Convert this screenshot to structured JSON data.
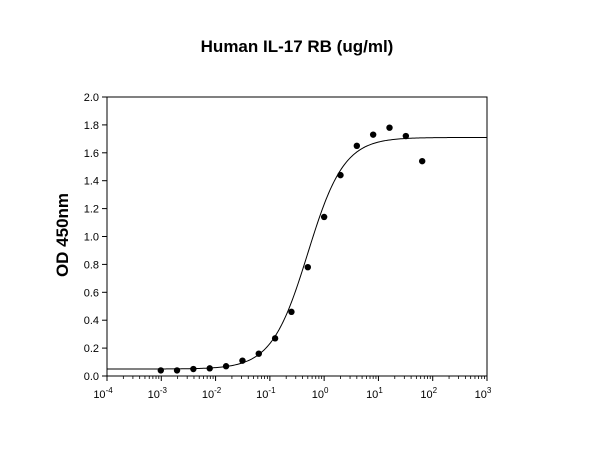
{
  "chart_data": {
    "type": "scatter",
    "title": "Human IL-17 RB (ug/ml)",
    "xlabel": "",
    "ylabel": "OD 450nm",
    "xscale": "log",
    "xlim_exp": [
      -4,
      3
    ],
    "x_tick_exponents": [
      -4,
      -3,
      -2,
      -1,
      0,
      1,
      2,
      3
    ],
    "x_tick_base": "10",
    "ylim": [
      0.0,
      2.0
    ],
    "y_ticks": [
      0.0,
      0.2,
      0.4,
      0.6,
      0.8,
      1.0,
      1.2,
      1.4,
      1.6,
      1.8,
      2.0
    ],
    "y_tick_labels": [
      "0.0",
      "0.2",
      "0.4",
      "0.6",
      "0.8",
      "1.0",
      "1.2",
      "1.4",
      "1.6",
      "1.8",
      "2.0"
    ],
    "grid": false,
    "legend": "none",
    "series": [
      {
        "kind": "points",
        "x": [
          0.00098,
          0.00195,
          0.0039,
          0.0078,
          0.0156,
          0.0313,
          0.0625,
          0.125,
          0.25,
          0.5,
          1.0,
          2.0,
          4.0,
          8.0,
          16.0,
          32.0,
          64.0
        ],
        "y": [
          0.04,
          0.04,
          0.05,
          0.055,
          0.07,
          0.11,
          0.16,
          0.27,
          0.46,
          0.78,
          1.14,
          1.44,
          1.65,
          1.73,
          1.78,
          1.72,
          1.54
        ]
      },
      {
        "kind": "fit",
        "model": "four-parameter logistic",
        "bottom": 0.05,
        "top": 1.71,
        "ec50": 0.5,
        "hill": 1.3
      }
    ],
    "colors": {
      "points": "#000000",
      "line": "#000000",
      "axis": "#000000"
    }
  }
}
